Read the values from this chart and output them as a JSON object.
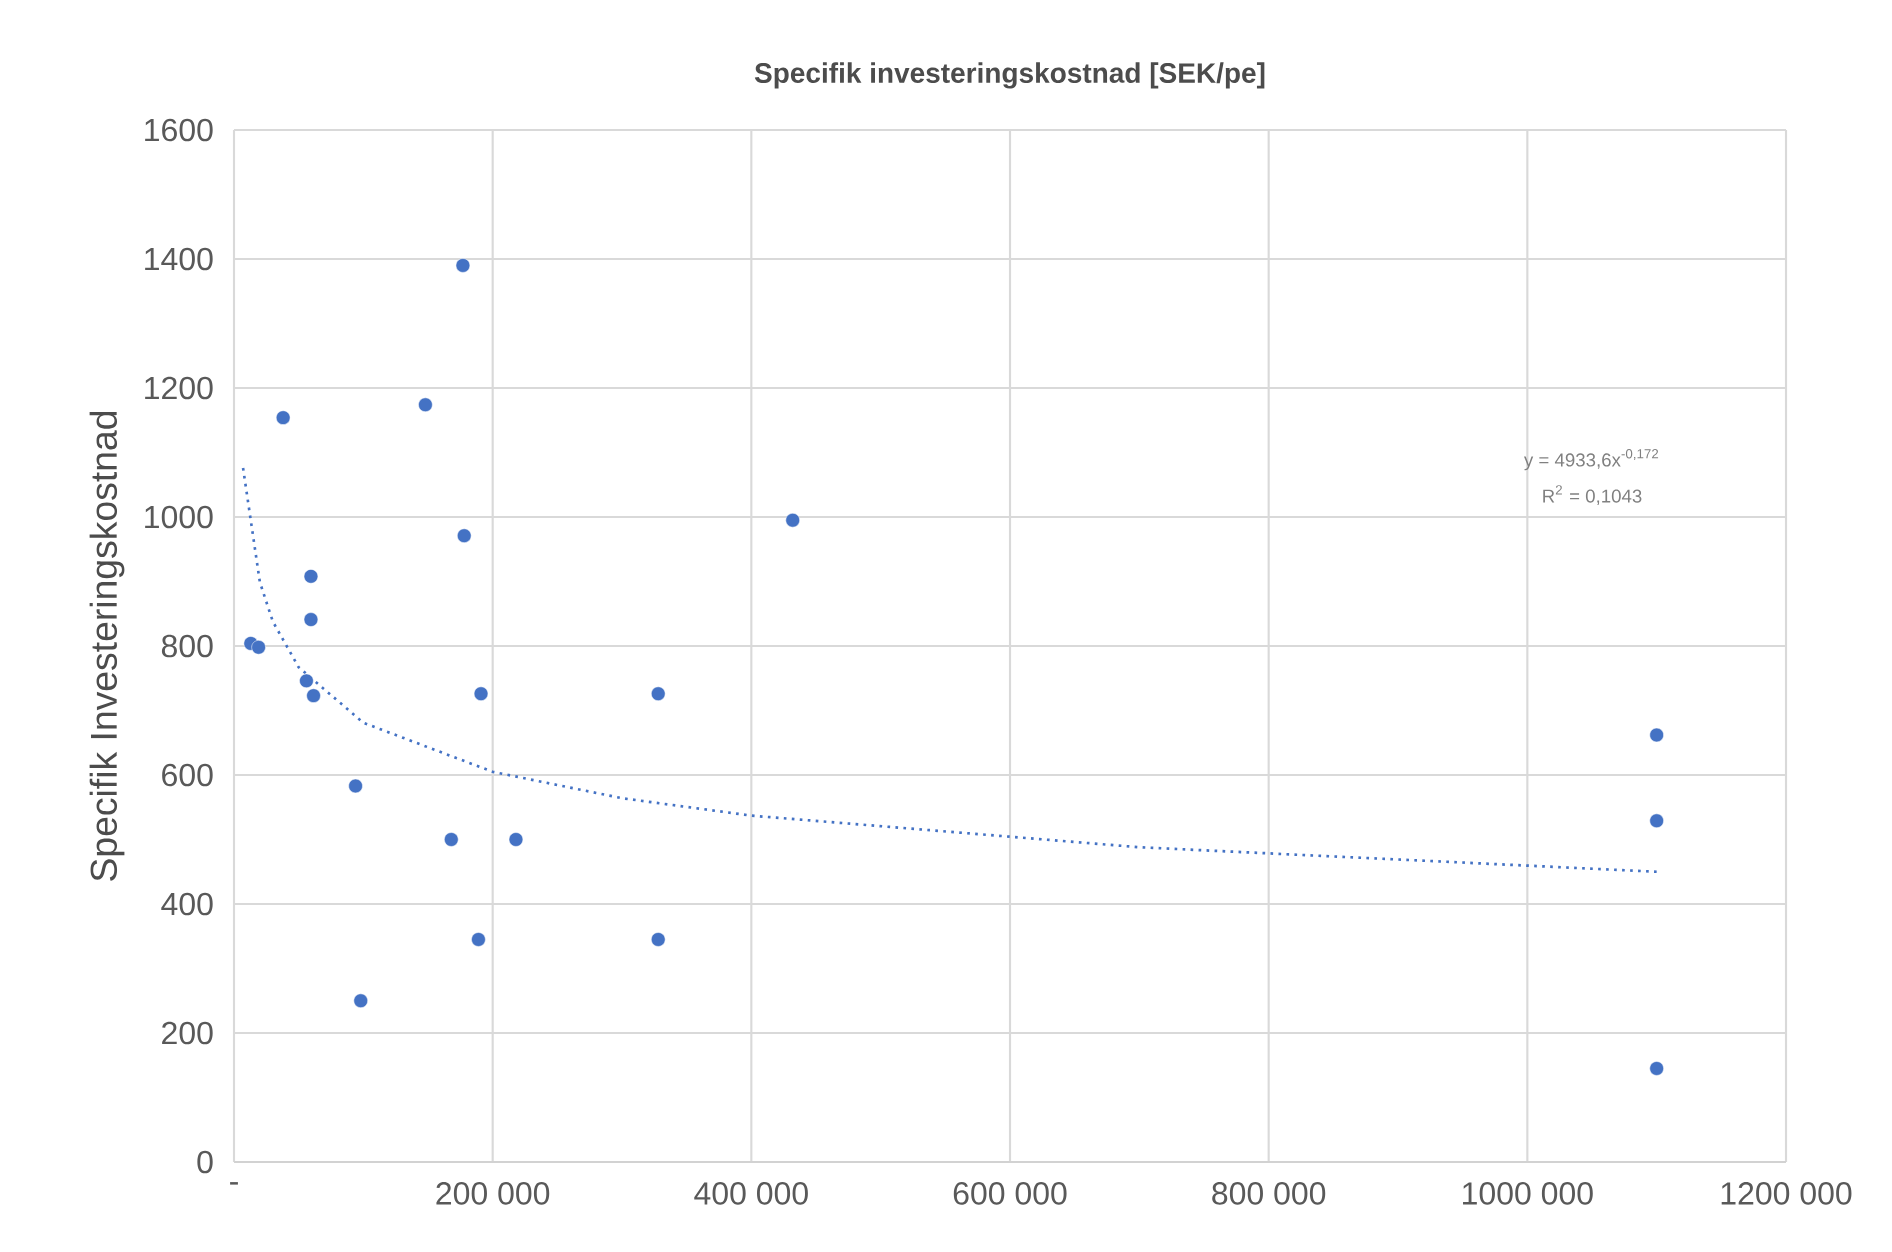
{
  "chart_data": {
    "type": "scatter",
    "title": "Specifik investeringskostnad [SEK/pe]",
    "ylabel": "Specifik Investeringskostnad",
    "xlim": [
      0,
      1200000
    ],
    "ylim": [
      0,
      1600
    ],
    "xticks": [
      {
        "value": 0,
        "label": "-"
      },
      {
        "value": 200000,
        "label": "200 000"
      },
      {
        "value": 400000,
        "label": "400 000"
      },
      {
        "value": 600000,
        "label": "600 000"
      },
      {
        "value": 800000,
        "label": "800 000"
      },
      {
        "value": 1000000,
        "label": "1000 000"
      },
      {
        "value": 1200000,
        "label": "1200 000"
      }
    ],
    "yticks": [
      0,
      200,
      400,
      600,
      800,
      1000,
      1200,
      1400,
      1600
    ],
    "grid": true,
    "annotations": [
      "y = 4933,6x$^{-0,172}$",
      "R$^{2}$ = 0,1043"
    ],
    "series": [
      {
        "color": "#4472c4",
        "marker": "circle",
        "x": [
          13000,
          19000,
          38000,
          59500,
          59500,
          56000,
          61500,
          148000,
          178000,
          191000,
          177000,
          94000,
          168000,
          218000,
          98000,
          189000,
          328000,
          328000,
          432000,
          1100000,
          1100000,
          1100000
        ],
        "values": [
          804,
          798,
          1154,
          908,
          841,
          746,
          723,
          1174,
          971,
          726,
          1390,
          583,
          500,
          500,
          250,
          345,
          726,
          345,
          995,
          662,
          529,
          145
        ]
      },
      {
        "type": "line",
        "color": "#4472c4",
        "marker": "none",
        "line_style": "dotted",
        "x": [
          7000,
          20000,
          30000,
          50000,
          100000,
          200000,
          300000,
          400000,
          700000,
          1100000
        ],
        "values": [
          1076,
          899,
          838,
          767,
          681,
          605,
          564,
          537,
          488,
          450
        ]
      }
    ]
  }
}
